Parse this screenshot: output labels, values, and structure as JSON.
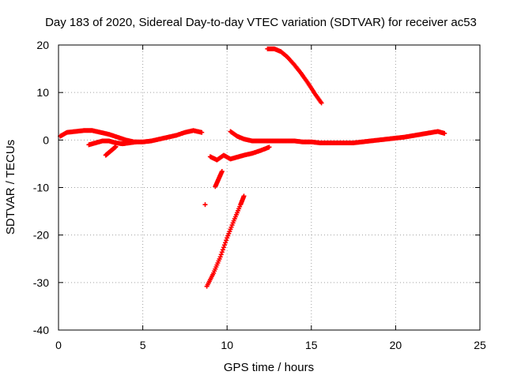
{
  "chart_data": {
    "type": "scatter",
    "title": "Day 183 of 2020, Sidereal Day-to-day VTEC variation (SDTVAR) for receiver ac53",
    "xlabel": "GPS time / hours",
    "ylabel": "SDTVAR / TECUs",
    "xlim": [
      0,
      25
    ],
    "ylim": [
      -40,
      20
    ],
    "x_ticks": [
      0,
      5,
      10,
      15,
      20,
      25
    ],
    "y_ticks": [
      -40,
      -30,
      -20,
      -10,
      0,
      10,
      20
    ],
    "grid": true,
    "legend": "none",
    "marker": "plus",
    "color": "#ff0000",
    "series": [
      {
        "name": "segment-main-left",
        "x": [
          0.1,
          0.5,
          1.0,
          1.5,
          2.0,
          2.5,
          3.0,
          3.5,
          4.0,
          4.5,
          5.0,
          5.5,
          6.0,
          6.5,
          7.0,
          7.5,
          8.0,
          8.5
        ],
        "y": [
          0.8,
          1.6,
          1.8,
          2.0,
          2.0,
          1.6,
          1.2,
          0.6,
          0.0,
          -0.4,
          -0.4,
          -0.2,
          0.2,
          0.6,
          1.0,
          1.6,
          2.0,
          1.6
        ]
      },
      {
        "name": "segment-lower-left",
        "x": [
          1.8,
          2.2,
          2.6,
          3.0,
          3.4,
          3.8,
          4.2,
          4.6
        ],
        "y": [
          -1.0,
          -0.6,
          -0.2,
          -0.2,
          -0.6,
          -0.8,
          -0.6,
          -0.4
        ]
      },
      {
        "name": "segment-short-dip",
        "x": [
          2.8,
          3.0,
          3.2,
          3.4
        ],
        "y": [
          -3.2,
          -2.6,
          -2.0,
          -1.4
        ]
      },
      {
        "name": "segment-main-right",
        "x": [
          12.0,
          12.5,
          13.0,
          13.5,
          14.0,
          14.5,
          15.0,
          15.5,
          16.0,
          16.5,
          17.0,
          17.5,
          18.0,
          18.5,
          19.0,
          19.5,
          20.0,
          20.5,
          21.0,
          21.5,
          22.0,
          22.5,
          22.9
        ],
        "y": [
          -0.2,
          -0.2,
          -0.2,
          -0.2,
          -0.2,
          -0.4,
          -0.4,
          -0.6,
          -0.6,
          -0.6,
          -0.6,
          -0.6,
          -0.4,
          -0.2,
          0.0,
          0.2,
          0.4,
          0.6,
          0.9,
          1.2,
          1.5,
          1.8,
          1.4
        ]
      },
      {
        "name": "segment-after-gap",
        "x": [
          10.2,
          10.6,
          11.0,
          11.5,
          12.0
        ],
        "y": [
          1.8,
          0.8,
          0.2,
          -0.2,
          -0.2
        ]
      },
      {
        "name": "segment-middle-rising",
        "x": [
          9.0,
          9.4,
          9.8,
          10.2,
          10.6,
          11.0,
          11.5,
          12.0,
          12.5
        ],
        "y": [
          -3.5,
          -4.2,
          -3.2,
          -4.0,
          -3.6,
          -3.2,
          -2.8,
          -2.2,
          -1.5
        ]
      },
      {
        "name": "segment-upper-arc",
        "x": [
          12.4,
          12.8,
          13.2,
          13.6,
          14.0,
          14.4,
          14.8,
          15.2,
          15.6
        ],
        "y": [
          19.2,
          19.2,
          18.6,
          17.4,
          15.8,
          14.0,
          12.0,
          9.8,
          7.8
        ]
      },
      {
        "name": "segment-steep-dive",
        "x": [
          8.8,
          9.2,
          9.6,
          10.0,
          10.4,
          10.8,
          11.0
        ],
        "y": [
          -30.8,
          -28.0,
          -24.6,
          -20.6,
          -17.0,
          -13.6,
          -11.8
        ]
      },
      {
        "name": "segment-short-vertical",
        "x": [
          9.3,
          9.5,
          9.7
        ],
        "y": [
          -9.8,
          -8.2,
          -6.6
        ]
      },
      {
        "name": "segment-isolated-point",
        "x": [
          8.7
        ],
        "y": [
          -13.6
        ]
      }
    ]
  }
}
